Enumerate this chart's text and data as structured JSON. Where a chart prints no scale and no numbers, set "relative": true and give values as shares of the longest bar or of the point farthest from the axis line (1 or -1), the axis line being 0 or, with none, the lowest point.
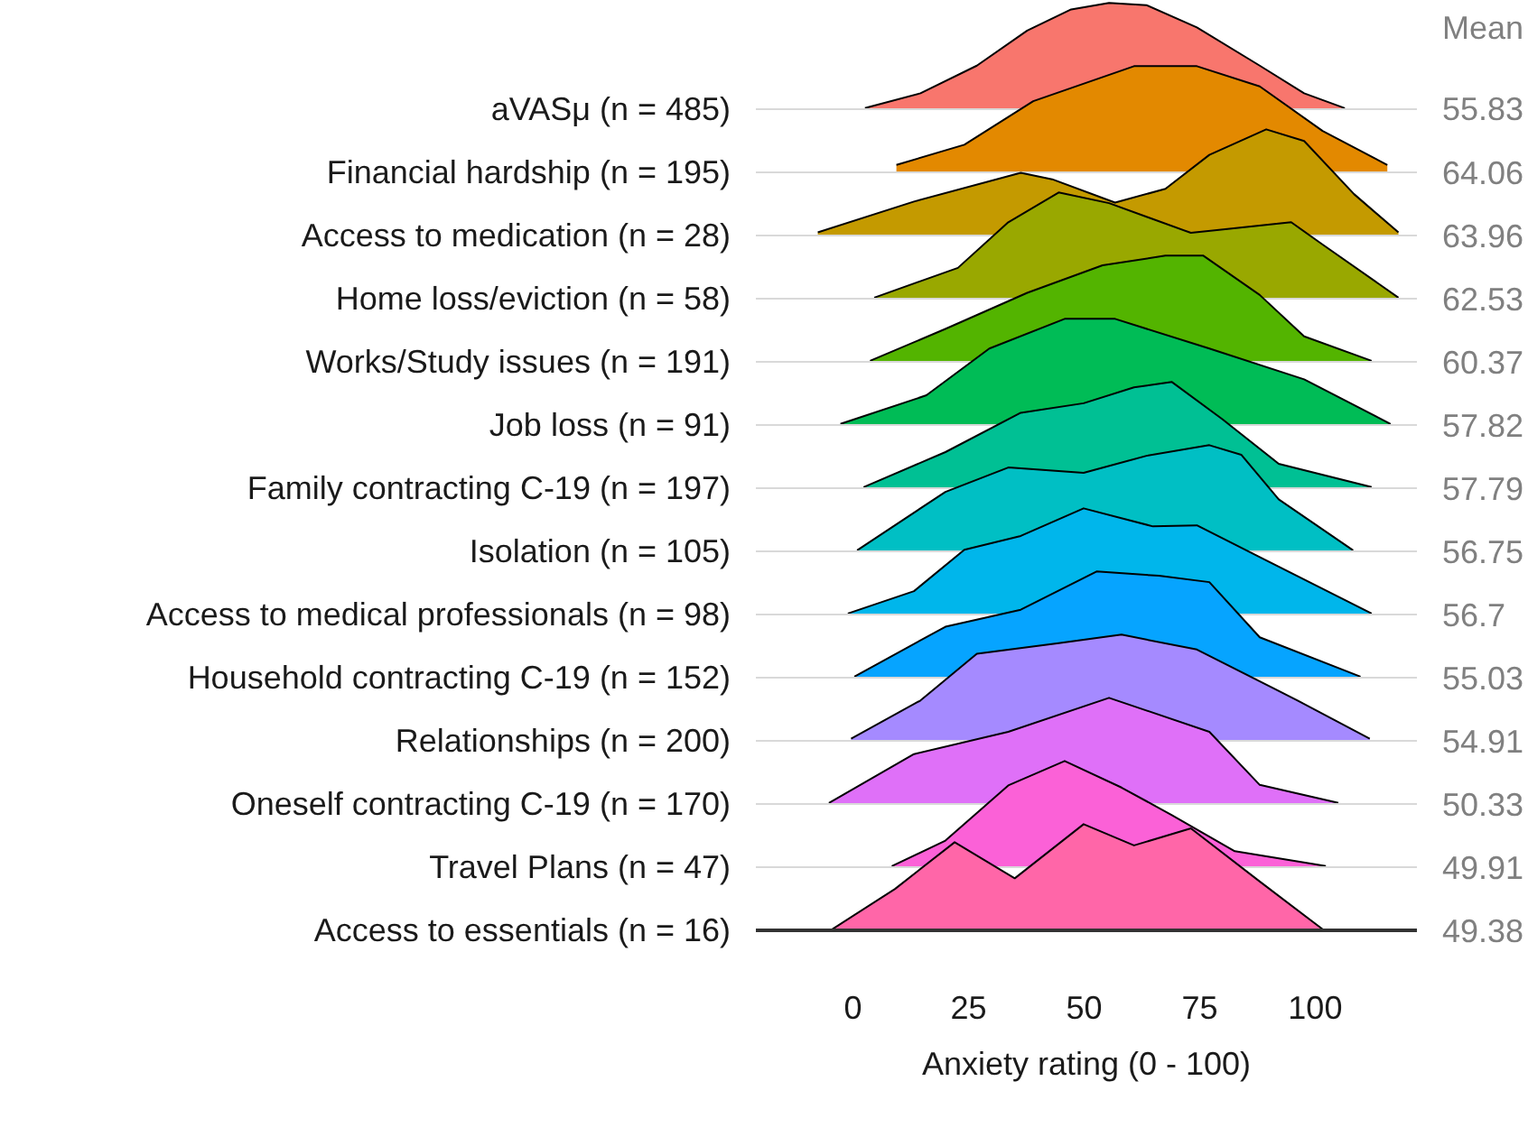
{
  "chart_data": [
    {
      "type": "area",
      "relative": true,
      "ylabel": "aVASμ (n = 485)",
      "annotations": [
        "Mean",
        "55.83"
      ],
      "xlim": [
        -21,
        122
      ],
      "tick_labels": false,
      "series": [
        {
          "color": "#f8766d",
          "x": [
            2.6,
            14.6,
            26.8,
            37.7,
            47.2,
            55.4,
            63.5,
            74.4,
            88.0,
            97.6,
            106.4
          ],
          "values": [
            0.01,
            0.15,
            0.41,
            0.74,
            0.94,
            1,
            0.98,
            0.77,
            0.41,
            0.15,
            0.01
          ]
        }
      ]
    },
    {
      "type": "area",
      "relative": true,
      "ylabel": "Financial hardship (n = 195)",
      "annotations": [
        "64.06"
      ],
      "xlim": [
        -21,
        122
      ],
      "tick_labels": false,
      "series": [
        {
          "color": "#e38900",
          "x": [
            9.4,
            24.1,
            39.0,
            60.8,
            74.4,
            88.0,
            101.6,
            115.6
          ],
          "values": [
            0.07,
            0.26,
            0.67,
            1,
            1,
            0.81,
            0.39,
            0.07
          ]
        }
      ]
    },
    {
      "type": "area",
      "relative": true,
      "ylabel": "Access to medication (n = 28)",
      "annotations": [
        "63.96"
      ],
      "xlim": [
        -21,
        122
      ],
      "tick_labels": false,
      "series": [
        {
          "color": "#c49a00",
          "x": [
            -7.6,
            13.2,
            36.3,
            43.1,
            56.7,
            67.6,
            77.1,
            89.4,
            97.6,
            108.4,
            118.0
          ],
          "values": [
            0.03,
            0.32,
            0.59,
            0.53,
            0.31,
            0.44,
            0.76,
            1,
            0.89,
            0.39,
            0.03
          ]
        }
      ]
    },
    {
      "type": "area",
      "relative": true,
      "ylabel": "Home loss/eviction (n = 58)",
      "annotations": [
        "62.53"
      ],
      "xlim": [
        -21,
        122
      ],
      "tick_labels": false,
      "series": [
        {
          "color": "#99a800",
          "x": [
            4.6,
            22.7,
            33.6,
            44.5,
            55.4,
            73.1,
            94.8,
            101.6,
            118.0
          ],
          "values": [
            0.01,
            0.29,
            0.72,
            1,
            0.9,
            0.62,
            0.72,
            0.51,
            0.01
          ]
        }
      ]
    },
    {
      "type": "area",
      "relative": true,
      "ylabel": "Works/Study issues (n = 191)",
      "annotations": [
        "60.37"
      ],
      "xlim": [
        -21,
        122
      ],
      "tick_labels": false,
      "series": [
        {
          "color": "#53b400",
          "x": [
            3.7,
            20.0,
            37.7,
            54.0,
            67.6,
            75.8,
            88.0,
            97.6,
            112.2
          ],
          "values": [
            0.01,
            0.31,
            0.65,
            0.91,
            1,
            1,
            0.63,
            0.24,
            0.01
          ]
        }
      ]
    },
    {
      "type": "area",
      "relative": true,
      "ylabel": "Job loss (n = 91)",
      "annotations": [
        "57.82"
      ],
      "xlim": [
        -21,
        122
      ],
      "tick_labels": false,
      "series": [
        {
          "color": "#00bc56",
          "x": [
            -2.7,
            15.9,
            29.5,
            45.8,
            56.7,
            77.1,
            97.6,
            116.3
          ],
          "values": [
            0.01,
            0.28,
            0.72,
            1,
            1,
            0.72,
            0.43,
            0.01
          ]
        }
      ]
    },
    {
      "type": "area",
      "relative": true,
      "ylabel": "Family contracting C-19 (n = 197)",
      "annotations": [
        "57.79"
      ],
      "xlim": [
        -21,
        122
      ],
      "tick_labels": false,
      "series": [
        {
          "color": "#00c094",
          "x": [
            2.3,
            20.0,
            36.3,
            49.9,
            60.8,
            69.0,
            79.9,
            92.1,
            112.2
          ],
          "values": [
            0.01,
            0.34,
            0.71,
            0.8,
            0.95,
            1,
            0.65,
            0.23,
            0.01
          ]
        }
      ]
    },
    {
      "type": "area",
      "relative": true,
      "ylabel": "Isolation (n = 105)",
      "annotations": [
        "56.75"
      ],
      "xlim": [
        -21,
        122
      ],
      "tick_labels": false,
      "series": [
        {
          "color": "#00bfc4",
          "x": [
            0.9,
            20.0,
            33.6,
            49.9,
            63.5,
            77.1,
            84.0,
            92.1,
            108.2
          ],
          "values": [
            0.01,
            0.56,
            0.79,
            0.74,
            0.9,
            1,
            0.91,
            0.49,
            0.01
          ]
        }
      ]
    },
    {
      "type": "area",
      "relative": true,
      "ylabel": "Access to medical professionals (n = 98)",
      "annotations": [
        "56.7"
      ],
      "xlim": [
        -21,
        122
      ],
      "tick_labels": false,
      "series": [
        {
          "color": "#00b6eb",
          "x": [
            -1.1,
            13.2,
            24.1,
            36.3,
            49.9,
            64.9,
            74.4,
            88.0,
            112.2
          ],
          "values": [
            0.01,
            0.22,
            0.61,
            0.74,
            1,
            0.83,
            0.84,
            0.54,
            0.01
          ]
        }
      ]
    },
    {
      "type": "area",
      "relative": true,
      "ylabel": "Household contracting C-19 (n = 152)",
      "annotations": [
        "55.03"
      ],
      "xlim": [
        -21,
        122
      ],
      "tick_labels": false,
      "series": [
        {
          "color": "#06a4ff",
          "x": [
            0.3,
            20.0,
            36.3,
            52.7,
            66.2,
            77.1,
            88.0,
            109.8
          ],
          "values": [
            0.01,
            0.48,
            0.64,
            1,
            0.96,
            0.9,
            0.38,
            0.01
          ]
        }
      ]
    },
    {
      "type": "area",
      "relative": true,
      "ylabel": "Relationships (n = 200)",
      "annotations": [
        "54.91"
      ],
      "xlim": [
        -21,
        122
      ],
      "tick_labels": false,
      "series": [
        {
          "color": "#a58aff",
          "x": [
            -0.4,
            14.6,
            26.8,
            44.5,
            58.1,
            74.4,
            96.2,
            111.8
          ],
          "values": [
            0.02,
            0.38,
            0.82,
            0.92,
            1,
            0.86,
            0.38,
            0.02
          ]
        }
      ]
    },
    {
      "type": "area",
      "relative": true,
      "ylabel": "Oneself contracting C-19 (n = 170)",
      "annotations": [
        "50.33"
      ],
      "xlim": [
        -21,
        122
      ],
      "tick_labels": false,
      "series": [
        {
          "color": "#df70f8",
          "x": [
            -5.2,
            13.2,
            33.6,
            55.4,
            77.1,
            88.0,
            105.0
          ],
          "values": [
            0.01,
            0.47,
            0.68,
            1,
            0.68,
            0.18,
            0.01
          ]
        }
      ]
    },
    {
      "type": "area",
      "relative": true,
      "ylabel": "Travel Plans (n = 47)",
      "annotations": [
        "49.91"
      ],
      "xlim": [
        -21,
        122
      ],
      "tick_labels": false,
      "series": [
        {
          "color": "#fb61d7",
          "x": [
            8.4,
            20.0,
            33.6,
            45.8,
            58.1,
            69.0,
            82.6,
            102.3
          ],
          "values": [
            0.01,
            0.25,
            0.77,
            1,
            0.75,
            0.49,
            0.15,
            0.01
          ]
        }
      ]
    },
    {
      "type": "area",
      "relative": true,
      "ylabel": "Access to essentials (n = 16)",
      "annotations": [
        "49.38"
      ],
      "xlabel": "Anxiety rating (0 - 100)",
      "xlim": [
        -21,
        122
      ],
      "xticks": [
        0,
        25,
        50,
        75,
        100
      ],
      "tick_labels": "x",
      "series": [
        {
          "color": "#ff66a8",
          "x": [
            -4.5,
            9.1,
            22.0,
            35.0,
            49.9,
            60.8,
            73.1,
            88.0,
            101.6
          ],
          "values": [
            0.01,
            0.39,
            0.83,
            0.49,
            1,
            0.8,
            0.96,
            0.46,
            0.01
          ]
        }
      ]
    }
  ]
}
